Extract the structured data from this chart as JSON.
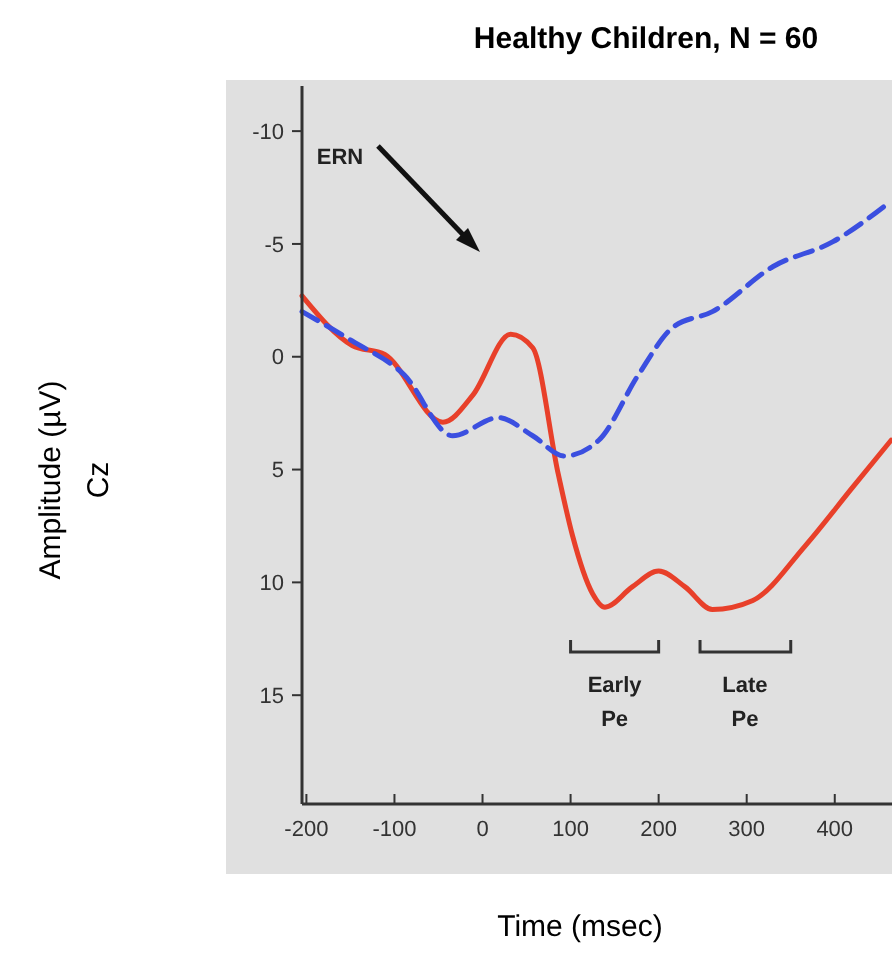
{
  "chart_data": {
    "type": "line",
    "title": "Healthy Children, N = 60",
    "xlabel": "Time (msec)",
    "ylabel": "Amplitude  (µV)\nCz",
    "xlim": [
      -205,
      465
    ],
    "xticks": [
      -200,
      -100,
      0,
      100,
      200,
      300,
      400
    ],
    "ylim": [
      20,
      -12
    ],
    "yticks": [
      -10,
      -5,
      0,
      5,
      10,
      15
    ],
    "grid": false,
    "annotations": [
      "ERN",
      "Early\nPe",
      "Late\nPe"
    ],
    "series": [
      {
        "color": "#e8402a",
        "line_style": "solid",
        "x": [
          -205,
          -148,
          -111,
          -45,
          -11,
          32,
          57,
          86,
          102,
          125,
          139,
          170,
          200,
          230,
          261,
          307,
          366,
          420,
          464
        ],
        "values": [
          -2.7,
          -0.5,
          -0.1,
          2.9,
          1.7,
          -1.0,
          -0.4,
          5.2,
          7.9,
          10.5,
          11.1,
          10.2,
          9.5,
          10.2,
          11.2,
          10.8,
          8.4,
          5.8,
          3.7
        ]
      },
      {
        "color": "#3b4fe0",
        "line_style": "dashed",
        "x": [
          -205,
          -148,
          -89,
          -34,
          18,
          57,
          93,
          132,
          177,
          216,
          261,
          330,
          398,
          464
        ],
        "values": [
          -2.0,
          -0.7,
          0.8,
          3.5,
          2.7,
          3.5,
          4.4,
          3.7,
          0.8,
          -1.3,
          -2.0,
          -4.0,
          -5.1,
          -6.9
        ]
      }
    ]
  }
}
